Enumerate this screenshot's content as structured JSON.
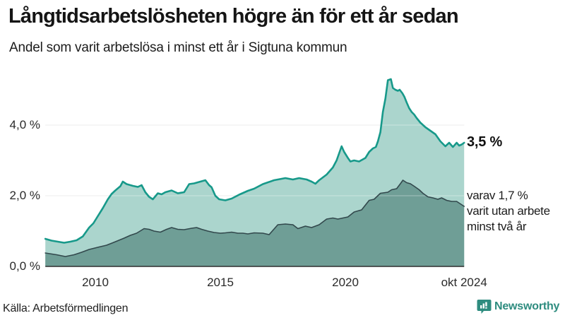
{
  "header": {
    "title": "Långtidsarbetslösheten högre än för ett år sedan",
    "subtitle": "Andel som varit arbetslösa i minst ett år i Sigtuna kommun"
  },
  "annotations": {
    "total_value_label": "3,5 %",
    "secondary_line1": "varav 1,7 %",
    "secondary_line2": "varit utan arbete",
    "secondary_line3": "minst två år"
  },
  "source": {
    "label": "Källa: Arbetsförmedlingen"
  },
  "branding": {
    "name": "Newsworthy",
    "color": "#2e8c7f",
    "icon": "bar-chart-speech-bubble"
  },
  "colors": {
    "total_line": "#17998a",
    "total_fill": "#abd5cd",
    "secondary_line": "#32484c",
    "secondary_fill": "#6f9e96",
    "gridline": "#e1e1e1",
    "gridline_over_fill": "rgba(255,255,255,0.38)",
    "axis_baseline": "#2e2e2e",
    "text": "#161616"
  },
  "chart_data": {
    "type": "area",
    "title": "Långtidsarbetslösheten högre än för ett år sedan",
    "subtitle": "Andel som varit arbetslösa i minst ett år i Sigtuna kommun",
    "xlabel": "",
    "ylabel": "",
    "x_range": [
      2008.0,
      2024.75
    ],
    "ylim": [
      0,
      5.5
    ],
    "grid": "horizontal",
    "legend_position": "none",
    "unit": "%",
    "y_ticks": [
      {
        "value": 0,
        "label": "0,0 %"
      },
      {
        "value": 2,
        "label": "2,0 %"
      },
      {
        "value": 4,
        "label": "4,0 %"
      }
    ],
    "x_ticks": [
      {
        "year": 2010,
        "label": "2010"
      },
      {
        "year": 2015,
        "label": "2015"
      },
      {
        "year": 2020,
        "label": "2020"
      },
      {
        "year": 2024.75,
        "label": "okt 2024"
      }
    ],
    "series": [
      {
        "name": "Arbetslösa minst ett år",
        "end_label": "3,5 %",
        "line_color": "#17998a",
        "fill_color": "#abd5cd",
        "line_width": 2.6,
        "points": [
          [
            2008.0,
            0.78
          ],
          [
            2008.25,
            0.73
          ],
          [
            2008.5,
            0.7
          ],
          [
            2008.75,
            0.67
          ],
          [
            2009.0,
            0.7
          ],
          [
            2009.25,
            0.74
          ],
          [
            2009.5,
            0.85
          ],
          [
            2009.75,
            1.1
          ],
          [
            2009.92,
            1.22
          ],
          [
            2010.08,
            1.4
          ],
          [
            2010.3,
            1.65
          ],
          [
            2010.5,
            1.9
          ],
          [
            2010.65,
            2.05
          ],
          [
            2010.8,
            2.15
          ],
          [
            2011.0,
            2.27
          ],
          [
            2011.1,
            2.4
          ],
          [
            2011.25,
            2.33
          ],
          [
            2011.5,
            2.28
          ],
          [
            2011.7,
            2.25
          ],
          [
            2011.85,
            2.3
          ],
          [
            2012.0,
            2.1
          ],
          [
            2012.15,
            1.97
          ],
          [
            2012.3,
            1.9
          ],
          [
            2012.5,
            2.07
          ],
          [
            2012.65,
            2.04
          ],
          [
            2012.8,
            2.1
          ],
          [
            2013.05,
            2.15
          ],
          [
            2013.3,
            2.07
          ],
          [
            2013.55,
            2.1
          ],
          [
            2013.75,
            2.33
          ],
          [
            2013.95,
            2.35
          ],
          [
            2014.2,
            2.4
          ],
          [
            2014.4,
            2.44
          ],
          [
            2014.55,
            2.3
          ],
          [
            2014.65,
            2.24
          ],
          [
            2014.8,
            2.0
          ],
          [
            2014.95,
            1.9
          ],
          [
            2015.2,
            1.87
          ],
          [
            2015.45,
            1.92
          ],
          [
            2015.75,
            2.03
          ],
          [
            2016.1,
            2.14
          ],
          [
            2016.35,
            2.2
          ],
          [
            2016.7,
            2.33
          ],
          [
            2017.15,
            2.44
          ],
          [
            2017.6,
            2.5
          ],
          [
            2017.9,
            2.46
          ],
          [
            2018.15,
            2.5
          ],
          [
            2018.45,
            2.46
          ],
          [
            2018.65,
            2.4
          ],
          [
            2018.8,
            2.34
          ],
          [
            2018.95,
            2.44
          ],
          [
            2019.25,
            2.6
          ],
          [
            2019.5,
            2.8
          ],
          [
            2019.65,
            3.0
          ],
          [
            2019.85,
            3.4
          ],
          [
            2019.95,
            3.24
          ],
          [
            2020.1,
            3.07
          ],
          [
            2020.2,
            2.97
          ],
          [
            2020.35,
            3.0
          ],
          [
            2020.55,
            2.97
          ],
          [
            2020.8,
            3.07
          ],
          [
            2020.95,
            3.24
          ],
          [
            2021.1,
            3.34
          ],
          [
            2021.22,
            3.38
          ],
          [
            2021.3,
            3.54
          ],
          [
            2021.4,
            3.8
          ],
          [
            2021.5,
            4.37
          ],
          [
            2021.6,
            4.75
          ],
          [
            2021.7,
            5.27
          ],
          [
            2021.82,
            5.3
          ],
          [
            2021.9,
            5.05
          ],
          [
            2022.0,
            5.0
          ],
          [
            2022.1,
            4.97
          ],
          [
            2022.17,
            5.0
          ],
          [
            2022.28,
            4.9
          ],
          [
            2022.36,
            4.8
          ],
          [
            2022.45,
            4.64
          ],
          [
            2022.55,
            4.48
          ],
          [
            2022.65,
            4.37
          ],
          [
            2022.75,
            4.3
          ],
          [
            2022.85,
            4.2
          ],
          [
            2023.0,
            4.07
          ],
          [
            2023.2,
            3.94
          ],
          [
            2023.4,
            3.84
          ],
          [
            2023.6,
            3.74
          ],
          [
            2023.8,
            3.54
          ],
          [
            2024.0,
            3.4
          ],
          [
            2024.15,
            3.5
          ],
          [
            2024.3,
            3.38
          ],
          [
            2024.45,
            3.5
          ],
          [
            2024.55,
            3.42
          ],
          [
            2024.65,
            3.45
          ],
          [
            2024.75,
            3.5
          ]
        ]
      },
      {
        "name": "varav utan arbete minst två år",
        "end_label": "1,7 %",
        "line_color": "#32484c",
        "fill_color": "#6f9e96",
        "line_width": 1.6,
        "points": [
          [
            2008.0,
            0.38
          ],
          [
            2008.45,
            0.33
          ],
          [
            2008.8,
            0.28
          ],
          [
            2009.15,
            0.33
          ],
          [
            2009.45,
            0.4
          ],
          [
            2009.75,
            0.48
          ],
          [
            2010.15,
            0.55
          ],
          [
            2010.45,
            0.6
          ],
          [
            2010.7,
            0.67
          ],
          [
            2011.15,
            0.8
          ],
          [
            2011.4,
            0.88
          ],
          [
            2011.65,
            0.94
          ],
          [
            2011.95,
            1.07
          ],
          [
            2012.15,
            1.05
          ],
          [
            2012.35,
            1.0
          ],
          [
            2012.6,
            0.97
          ],
          [
            2012.85,
            1.05
          ],
          [
            2013.05,
            1.1
          ],
          [
            2013.3,
            1.05
          ],
          [
            2013.55,
            1.04
          ],
          [
            2013.85,
            1.08
          ],
          [
            2014.05,
            1.1
          ],
          [
            2014.25,
            1.05
          ],
          [
            2014.5,
            1.0
          ],
          [
            2014.75,
            0.96
          ],
          [
            2015.0,
            0.94
          ],
          [
            2015.2,
            0.95
          ],
          [
            2015.45,
            0.97
          ],
          [
            2015.7,
            0.94
          ],
          [
            2015.9,
            0.94
          ],
          [
            2016.1,
            0.92
          ],
          [
            2016.35,
            0.95
          ],
          [
            2016.7,
            0.94
          ],
          [
            2016.95,
            0.9
          ],
          [
            2017.3,
            1.18
          ],
          [
            2017.6,
            1.2
          ],
          [
            2017.9,
            1.18
          ],
          [
            2018.1,
            1.07
          ],
          [
            2018.4,
            1.14
          ],
          [
            2018.65,
            1.1
          ],
          [
            2018.95,
            1.18
          ],
          [
            2019.25,
            1.34
          ],
          [
            2019.5,
            1.37
          ],
          [
            2019.7,
            1.34
          ],
          [
            2019.9,
            1.37
          ],
          [
            2020.1,
            1.4
          ],
          [
            2020.35,
            1.54
          ],
          [
            2020.65,
            1.6
          ],
          [
            2020.95,
            1.87
          ],
          [
            2021.15,
            1.9
          ],
          [
            2021.4,
            2.07
          ],
          [
            2021.7,
            2.1
          ],
          [
            2021.85,
            2.17
          ],
          [
            2022.05,
            2.2
          ],
          [
            2022.2,
            2.34
          ],
          [
            2022.3,
            2.44
          ],
          [
            2022.45,
            2.37
          ],
          [
            2022.6,
            2.34
          ],
          [
            2022.75,
            2.27
          ],
          [
            2022.95,
            2.17
          ],
          [
            2023.1,
            2.07
          ],
          [
            2023.3,
            1.97
          ],
          [
            2023.5,
            1.94
          ],
          [
            2023.7,
            1.9
          ],
          [
            2023.85,
            1.94
          ],
          [
            2024.05,
            1.87
          ],
          [
            2024.25,
            1.84
          ],
          [
            2024.45,
            1.84
          ],
          [
            2024.6,
            1.77
          ],
          [
            2024.75,
            1.7
          ]
        ]
      }
    ]
  }
}
